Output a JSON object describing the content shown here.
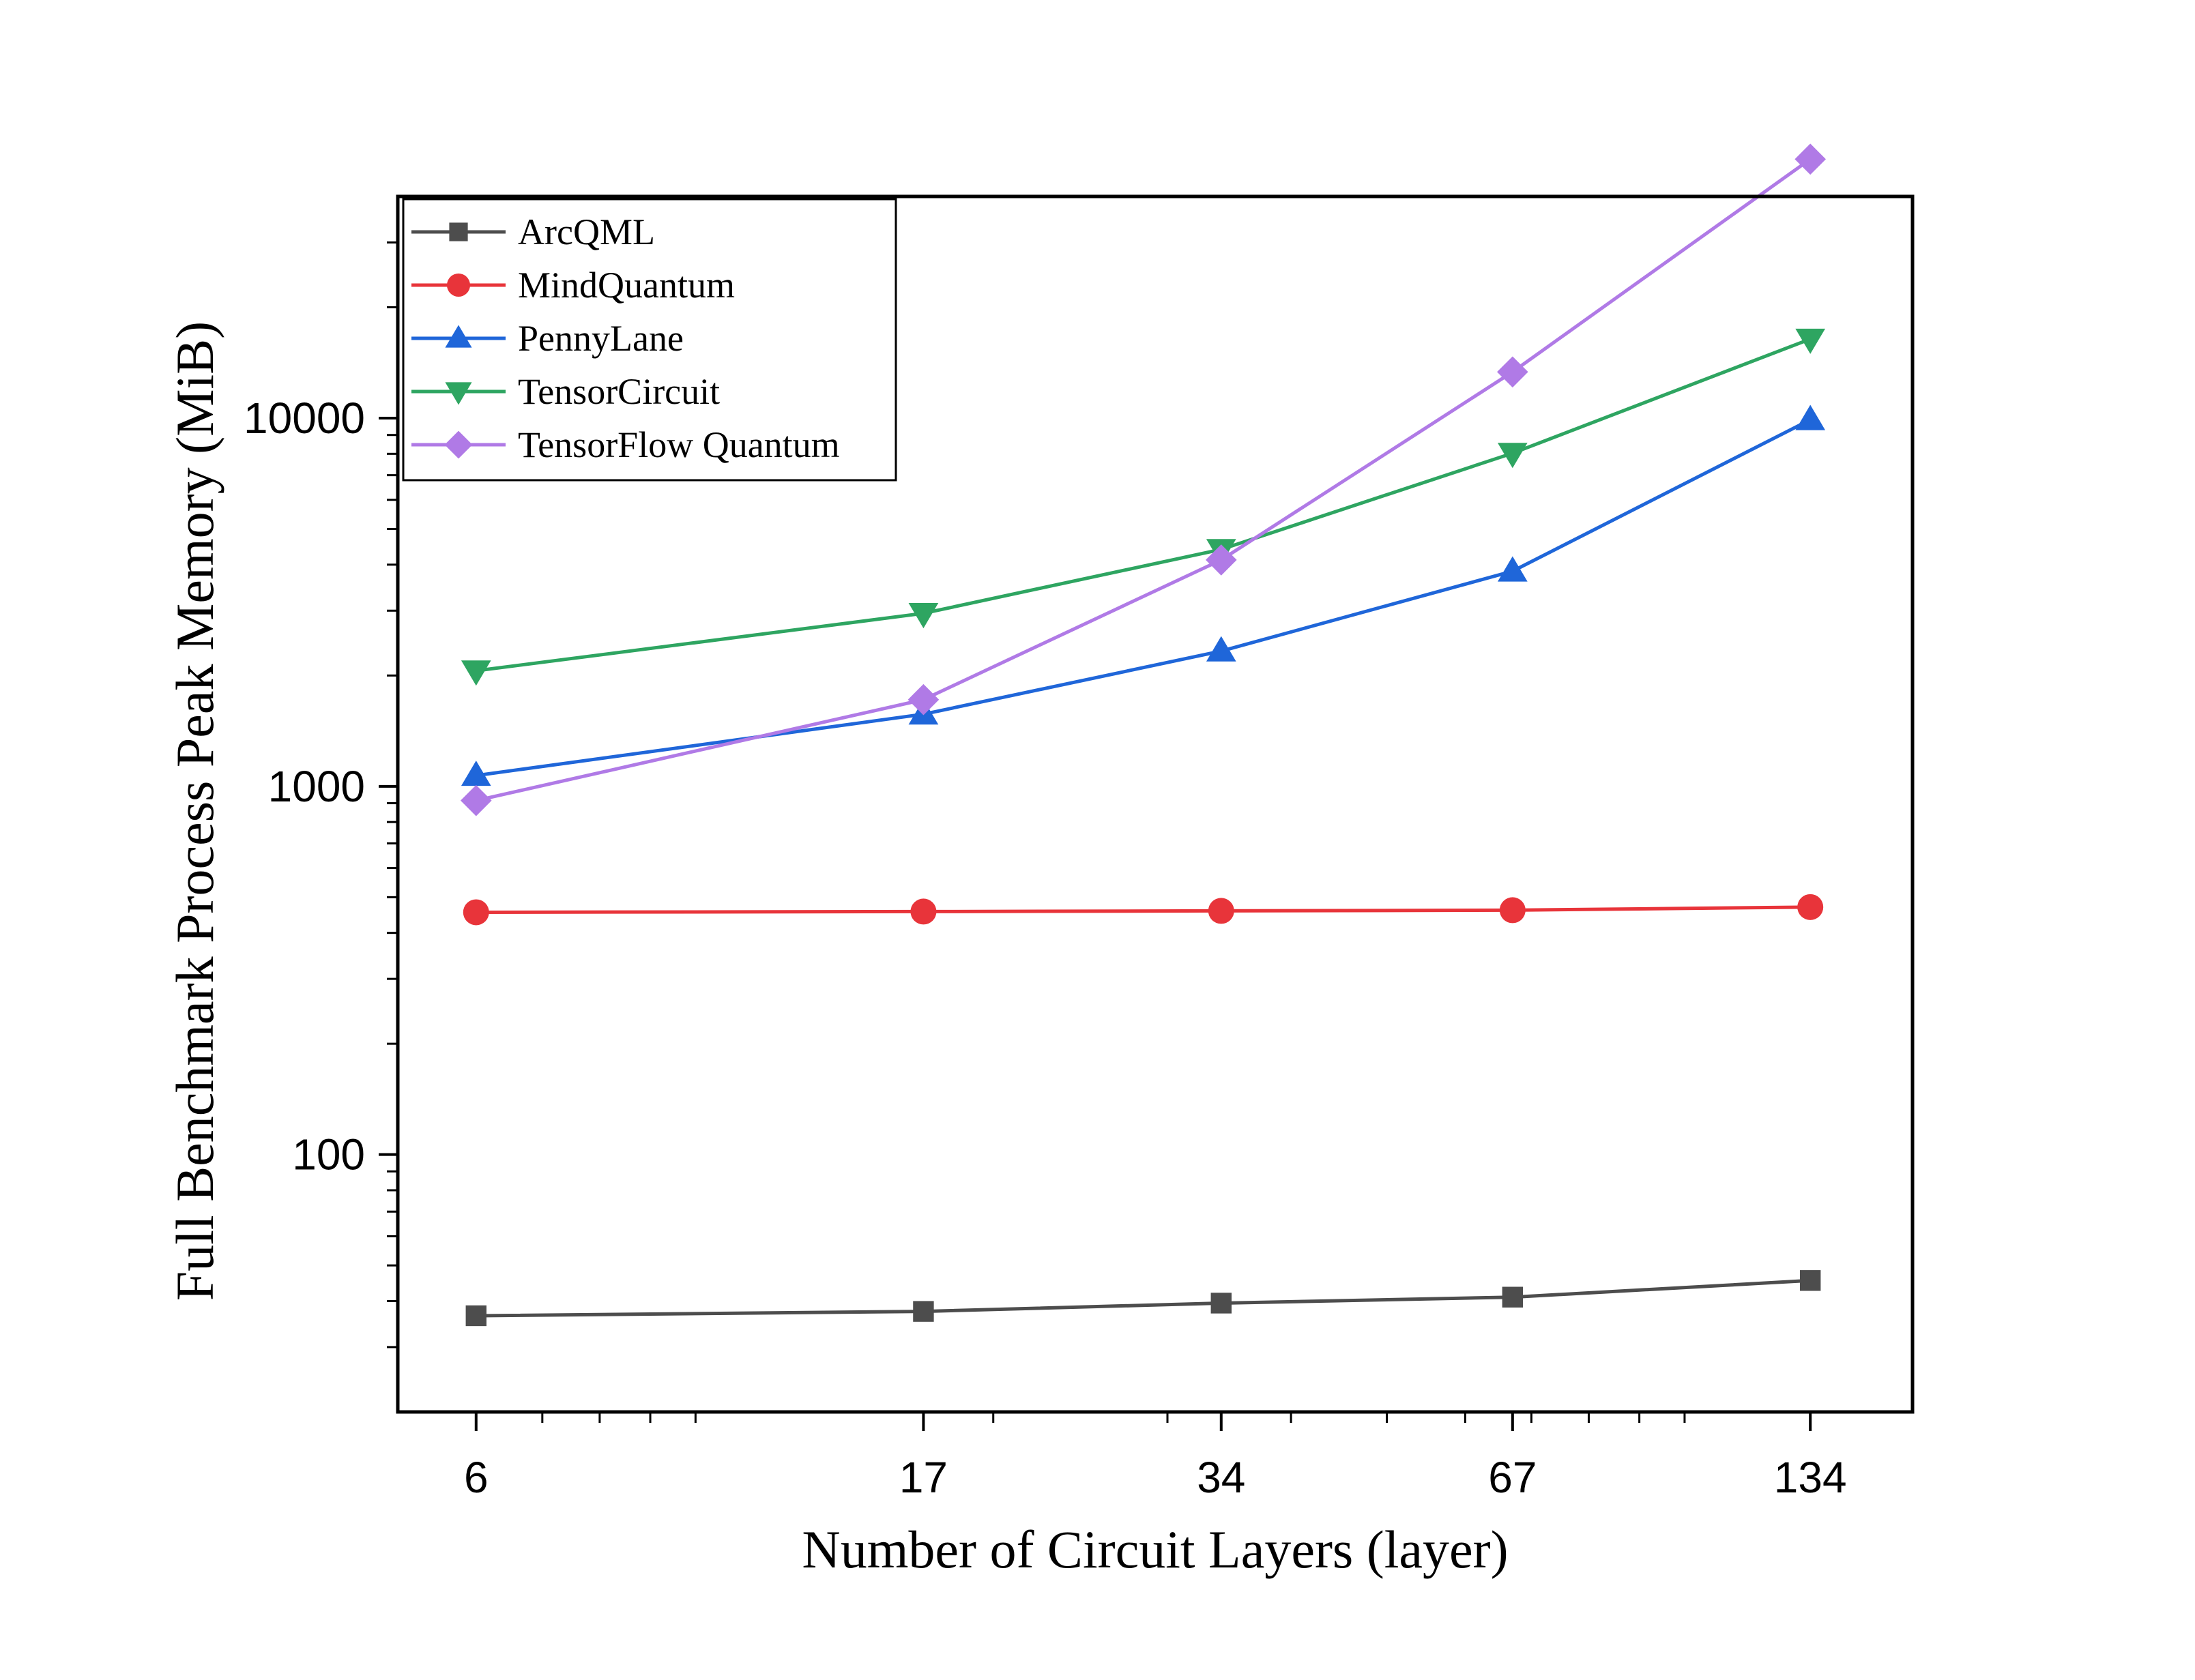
{
  "chart_data": {
    "type": "line",
    "xlabel": "Number of Circuit Layers (layer)",
    "ylabel": "Full Benchmark Process Peak Memory (MiB)",
    "x_scale": "log",
    "y_scale": "log",
    "x": [
      6,
      17,
      34,
      67,
      134
    ],
    "x_tick_labels": [
      "6",
      "17",
      "34",
      "67",
      "134"
    ],
    "y_tick_labels": [
      "100",
      "1000",
      "10000"
    ],
    "xlim": [
      5,
      170
    ],
    "ylim": [
      20,
      40000
    ],
    "grid": false,
    "legend_position": "top-left",
    "series": [
      {
        "name": "ArcQML",
        "color": "#4d4d4d",
        "marker": "square",
        "values": [
          36.5,
          37.5,
          39.5,
          41,
          45.5
        ]
      },
      {
        "name": "MindQuantum",
        "color": "#e8343a",
        "marker": "circle",
        "values": [
          455,
          457,
          459,
          461,
          470
        ]
      },
      {
        "name": "PennyLane",
        "color": "#1f66d9",
        "marker": "triangle-up",
        "values": [
          1070,
          1570,
          2330,
          3840,
          9900
        ]
      },
      {
        "name": "TensorCircuit",
        "color": "#2ea561",
        "marker": "triangle-down",
        "values": [
          2060,
          2950,
          4400,
          8030,
          16400
        ]
      },
      {
        "name": "TensorFlow Quantum",
        "color": "#b07ae6",
        "marker": "diamond",
        "values": [
          915,
          1720,
          4120,
          13350,
          50500
        ]
      }
    ]
  }
}
